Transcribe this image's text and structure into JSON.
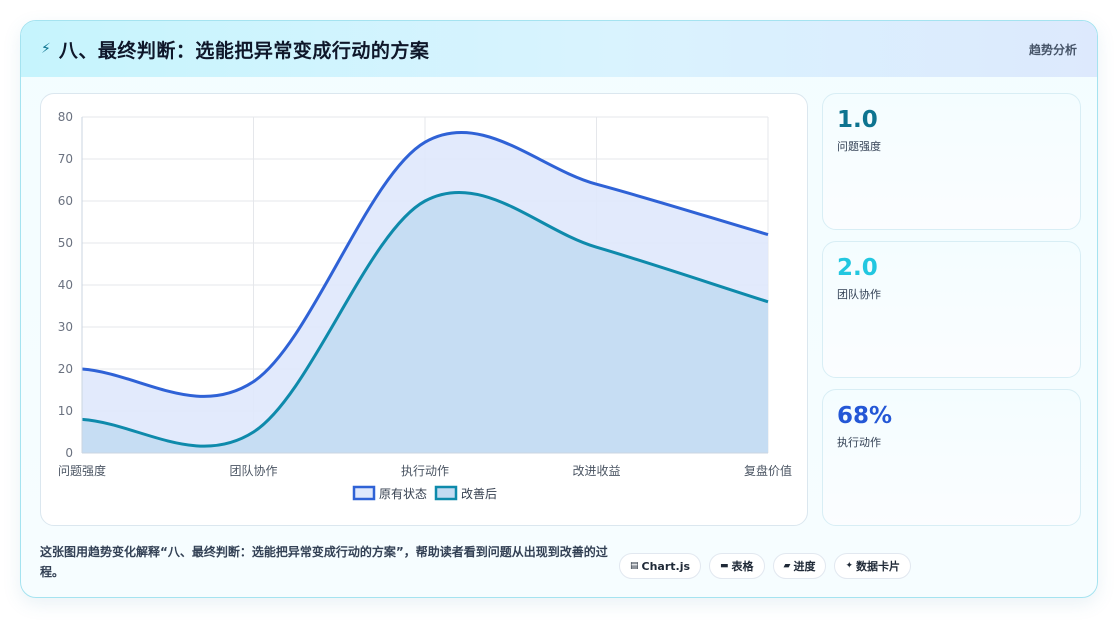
{
  "header": {
    "icon": "sparkle-icon",
    "title": "八、最终判断：选能把异常变成行动的方案",
    "tag": "趋势分析"
  },
  "chart_data": {
    "type": "area",
    "categories": [
      "问题强度",
      "团队协作",
      "执行动作",
      "改进收益",
      "复盘价值"
    ],
    "series": [
      {
        "name": "原有状态",
        "values": [
          20,
          17,
          74,
          64,
          52
        ],
        "color": "#2f62d6",
        "fill": "#dfe8fc"
      },
      {
        "name": "改善后",
        "values": [
          8,
          5,
          60,
          49,
          36
        ],
        "color": "#0e8aab",
        "fill": "#c3dbf2"
      }
    ],
    "ylim": [
      0,
      80
    ],
    "yticks": [
      0,
      10,
      20,
      30,
      40,
      50,
      60,
      70,
      80
    ],
    "grid": true,
    "legend": "bottom"
  },
  "stats": [
    {
      "value": "1.0",
      "label": "问题强度",
      "color": "#0e7490"
    },
    {
      "value": "2.0",
      "label": "团队协作",
      "color": "#22c7e0"
    },
    {
      "value": "68%",
      "label": "执行动作",
      "color": "#2457d6"
    }
  ],
  "footer": {
    "text": "这张图用趋势变化解释“八、最终判断：选能把异常变成行动的方案”，帮助读者看到问题从出现到改善的过程。",
    "pills": [
      {
        "icon": "▤",
        "label": "Chart.js"
      },
      {
        "icon": "▬",
        "label": "表格"
      },
      {
        "icon": "▰",
        "label": "进度"
      },
      {
        "icon": "✦",
        "label": "数据卡片"
      }
    ]
  }
}
